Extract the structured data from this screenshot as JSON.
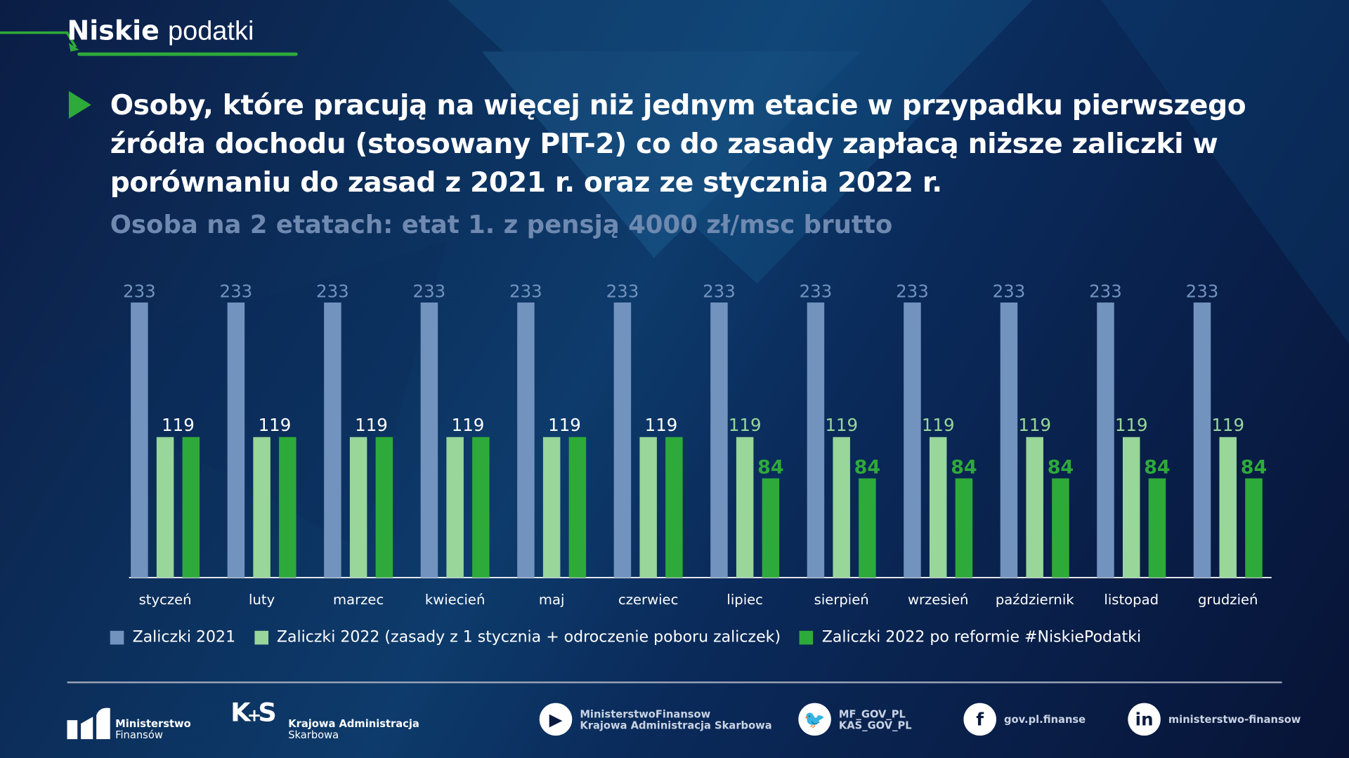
{
  "brand": {
    "bold": "Niskie",
    "light": "podatki"
  },
  "title": "Osoby, które pracują na więcej niż jednym etacie w przypadku pierwszego źródła dochodu (stosowany PIT-2) co do zasady zapłacą niższe zaliczki w porównaniu do zasad z 2021 r. oraz ze stycznia 2022 r.",
  "subtitle": "Osoba na 2 etatach: etat 1. z pensją 4000 zł/msc brutto",
  "colors": {
    "s2021": "#7393bf",
    "s2022": "#98d69a",
    "reform": "#2eaa3a",
    "accent": "#2eaa3a"
  },
  "chart_data": {
    "type": "bar",
    "categories": [
      "styczeń",
      "luty",
      "marzec",
      "kwiecień",
      "maj",
      "czerwiec",
      "lipiec",
      "sierpień",
      "wrzesień",
      "październik",
      "listopad",
      "grudzień"
    ],
    "series": [
      {
        "name": "Zaliczki 2021",
        "values": [
          233,
          233,
          233,
          233,
          233,
          233,
          233,
          233,
          233,
          233,
          233,
          233
        ]
      },
      {
        "name": "Zaliczki 2022 (zasady z 1 stycznia + odroczenie poboru zaliczek)",
        "values": [
          119,
          119,
          119,
          119,
          119,
          119,
          119,
          119,
          119,
          119,
          119,
          119
        ]
      },
      {
        "name": "Zaliczki 2022 po reformie #NiskiePodatki",
        "values": [
          119,
          119,
          119,
          119,
          119,
          119,
          84,
          84,
          84,
          84,
          84,
          84
        ]
      }
    ],
    "ylim": [
      0,
      233
    ],
    "grid": false,
    "legend": "bottom"
  },
  "footer": {
    "mf": [
      "Ministerstwo",
      "Finansów"
    ],
    "kas": [
      "Krajowa Administracja",
      "Skarbowa"
    ],
    "youtube": [
      "MinisterstwoFinansow",
      "Krajowa Administracja Skarbowa"
    ],
    "twitter": [
      "MF_GOV_PL",
      "KAS_GOV_PL"
    ],
    "facebook": "gov.pl.finanse",
    "linkedin": "ministerstwo-finansow"
  }
}
